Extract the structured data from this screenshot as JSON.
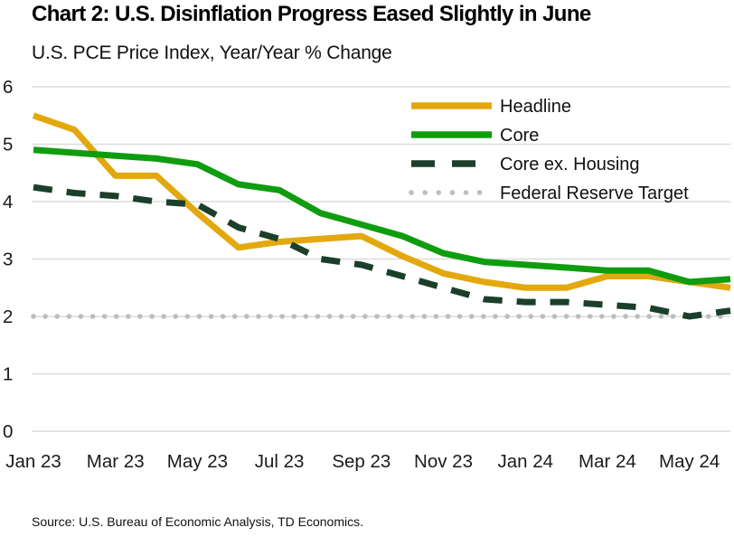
{
  "chart_data": {
    "type": "line",
    "title": "Chart 2: U.S. Disinflation Progress Eased Slightly in June",
    "subtitle": "U.S. PCE Price Index, Year/Year % Change",
    "source": "Source: U.S. Bureau of Economic Analysis, TD Economics.",
    "x": [
      "Jan 23",
      "Feb 23",
      "Mar 23",
      "Apr 23",
      "May 23",
      "Jun 23",
      "Jul 23",
      "Aug 23",
      "Sep 23",
      "Oct 23",
      "Nov 23",
      "Dec 23",
      "Jan 24",
      "Feb 24",
      "Mar 24",
      "Apr 24",
      "May 24",
      "Jun 24"
    ],
    "x_tick_labels": [
      "Jan 23",
      "Mar 23",
      "May 23",
      "Jul 23",
      "Sep 23",
      "Nov 23",
      "Jan 24",
      "Mar 24",
      "May 24"
    ],
    "ylim": [
      0,
      6
    ],
    "yticks": [
      0,
      1,
      2,
      3,
      4,
      5,
      6
    ],
    "grid": "horizontal",
    "legend_position": "top-right-inside",
    "series": [
      {
        "name": "Headline",
        "style": "solid",
        "color": "#E2A80E",
        "values": [
          5.5,
          5.25,
          4.45,
          4.45,
          3.8,
          3.2,
          3.3,
          3.35,
          3.4,
          3.05,
          2.75,
          2.6,
          2.5,
          2.5,
          2.7,
          2.7,
          2.6,
          2.5
        ]
      },
      {
        "name": "Core",
        "style": "solid",
        "color": "#0F9D0F",
        "values": [
          4.9,
          4.85,
          4.8,
          4.75,
          4.65,
          4.3,
          4.2,
          3.8,
          3.6,
          3.4,
          3.1,
          2.95,
          2.9,
          2.85,
          2.8,
          2.8,
          2.6,
          2.65
        ]
      },
      {
        "name": "Core ex. Housing",
        "style": "dashed",
        "color": "#1B3F2A",
        "values": [
          4.25,
          4.15,
          4.1,
          4.0,
          3.95,
          3.55,
          3.35,
          3.0,
          2.9,
          2.7,
          2.5,
          2.3,
          2.25,
          2.25,
          2.2,
          2.15,
          2.0,
          2.1
        ]
      },
      {
        "name": "Federal Reserve Target",
        "style": "dotted",
        "color": "#BDBDBD",
        "values": [
          2,
          2,
          2,
          2,
          2,
          2,
          2,
          2,
          2,
          2,
          2,
          2,
          2,
          2,
          2,
          2,
          2,
          2
        ]
      }
    ],
    "colors": {
      "gridline": "#DCDCDC",
      "axis_text": "#1A1A1A",
      "legend_text": "#111111"
    }
  }
}
